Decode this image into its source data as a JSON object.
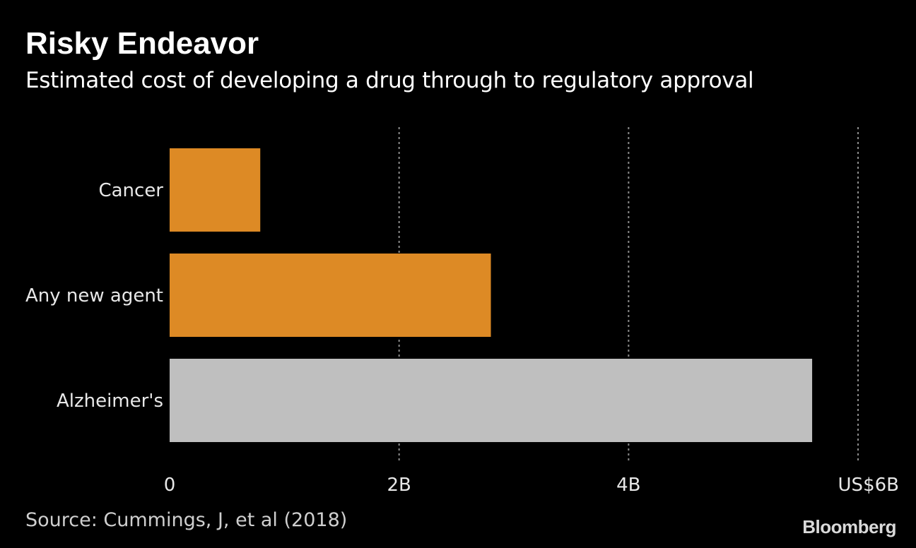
{
  "header": {
    "title": "Risky Endeavor",
    "subtitle": "Estimated cost of developing a drug through to regulatory approval"
  },
  "footer": {
    "source": "Source: Cummings, J, et al (2018)",
    "brand": "Bloomberg"
  },
  "colors": {
    "background": "#000000",
    "bar_primary": "#dd8a25",
    "bar_highlight": "#bfbfbf",
    "gridline": "#8a8a8a",
    "text": "#e8e8e8"
  },
  "chart_data": {
    "type": "bar",
    "orientation": "horizontal",
    "categories": [
      "Cancer",
      "Any new agent",
      "Alzheimer's"
    ],
    "values": [
      0.79,
      2.8,
      5.6
    ],
    "bar_colors": [
      "#dd8a25",
      "#dd8a25",
      "#bfbfbf"
    ],
    "xlim": [
      0,
      6
    ],
    "xticks": [
      0,
      2,
      4,
      6
    ],
    "xtick_labels": [
      "0",
      "2B",
      "4B",
      "US$6B"
    ],
    "grid": "vertical dotted",
    "unit": "US$ billions"
  }
}
